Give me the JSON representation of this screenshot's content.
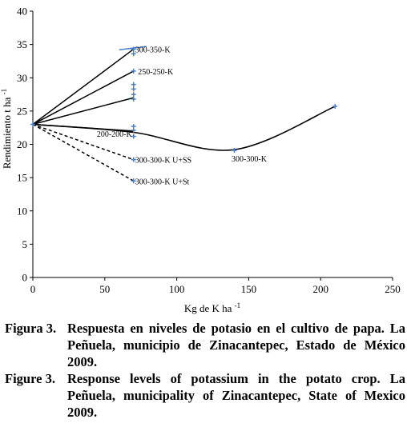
{
  "chart_data": {
    "type": "line",
    "xlabel": "Kg de K ha",
    "xlabel_sup": "-1",
    "ylabel": "Rendimiento t ha",
    "ylabel_sup": "-1",
    "xlim": [
      0,
      250
    ],
    "ylim": [
      0,
      40
    ],
    "xticks": [
      "0",
      "50",
      "100",
      "150",
      "200",
      "250"
    ],
    "yticks": [
      "0",
      "5",
      "10",
      "15",
      "20",
      "25",
      "30",
      "35",
      "40"
    ],
    "grid": false,
    "line_color": "#000000",
    "marker_color": "#4a7fc1",
    "series": [
      {
        "name": "300-350-K",
        "style": "solid",
        "x": [
          0,
          70
        ],
        "y": [
          23,
          34.3
        ]
      },
      {
        "name": "250-250-K",
        "style": "solid",
        "x": [
          0,
          70
        ],
        "y": [
          23,
          31
        ]
      },
      {
        "style": "solid",
        "x": [
          0,
          70
        ],
        "y": [
          23,
          27
        ]
      },
      {
        "name": "200-200-K",
        "style": "solid",
        "x": [
          0,
          70
        ],
        "y": [
          23,
          22
        ]
      },
      {
        "name": "300-300-K",
        "style": "curve",
        "x": [
          0,
          70,
          140,
          210
        ],
        "y": [
          23,
          21.8,
          19.2,
          25.7
        ]
      },
      {
        "name": "300-300-K U+SS",
        "style": "dashed",
        "x": [
          0,
          70
        ],
        "y": [
          23,
          17.7
        ]
      },
      {
        "name": "300-300-K U+St",
        "style": "dashed",
        "x": [
          0,
          70
        ],
        "y": [
          23,
          14.5
        ]
      }
    ],
    "points": [
      {
        "x": 70,
        "y": 34.3
      },
      {
        "x": 70,
        "y": 33.6
      },
      {
        "x": 70,
        "y": 31
      },
      {
        "x": 70,
        "y": 29
      },
      {
        "x": 70,
        "y": 28.3
      },
      {
        "x": 70,
        "y": 27.5
      },
      {
        "x": 70,
        "y": 26.8
      },
      {
        "x": 70,
        "y": 22.7
      },
      {
        "x": 70,
        "y": 22.1
      },
      {
        "x": 70,
        "y": 21.2
      },
      {
        "x": 70,
        "y": 17.7
      },
      {
        "x": 70,
        "y": 14.5
      },
      {
        "x": 140,
        "y": 19.1
      },
      {
        "x": 210,
        "y": 25.7
      },
      {
        "x": 0,
        "y": 23
      }
    ],
    "trend_segment": {
      "x": [
        60,
        79
      ],
      "y": [
        34.2,
        34.7
      ]
    },
    "labels": [
      {
        "text": "300-350-K",
        "x": 70,
        "y": 34.3,
        "anchor": "right"
      },
      {
        "text": "250-250-K",
        "x": 72,
        "y": 31,
        "anchor": "right"
      },
      {
        "text": "200-200-K",
        "x": 70,
        "y": 21.6,
        "anchor": "left"
      },
      {
        "text": "300-300-K U+SS",
        "x": 70,
        "y": 17.7,
        "anchor": "right"
      },
      {
        "text": "300-300-K U+St",
        "x": 70,
        "y": 14.5,
        "anchor": "right"
      },
      {
        "text": "300-300-K",
        "x": 137,
        "y": 17.9,
        "anchor": "right"
      }
    ]
  },
  "caption": {
    "es_num": "Figura 3.",
    "es_text": "Respuesta en niveles de potasio en el cultivo de papa. La Peñuela, municipio de Zinacantepec, Estado de México 2009.",
    "en_num": "Figure 3.",
    "en_text": "Response levels of potassium in the potato crop. La Peñuela, municipality of Zinacantepec, State of Mexico 2009."
  }
}
